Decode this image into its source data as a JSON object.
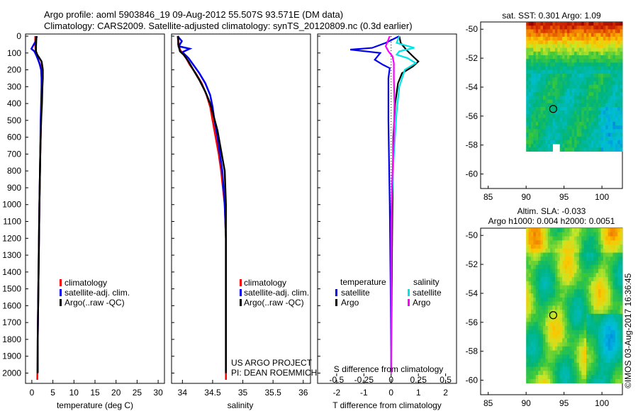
{
  "header": {
    "title_line1": "Argo profile: aoml 5903846_19 09-Aug-2012 55.507S 93.571E (DM data)",
    "title_line2": "Climatology: CARS2009. Satellite-adjusted climatology: synTS_20120809.nc (0.3d earlier)"
  },
  "colors": {
    "climatology": "#ff0000",
    "satellite": "#0000ee",
    "argo": "#000000",
    "sat_salinity": "#00e5e5",
    "argo_salinity": "#ff00ff"
  },
  "pressure_axis": {
    "ticks": [
      "0",
      "100",
      "200",
      "300",
      "400",
      "500",
      "600",
      "700",
      "800",
      "900",
      "1000",
      "1100",
      "1200",
      "1300",
      "1400",
      "1500",
      "1600",
      "1700",
      "1800",
      "1900",
      "2000"
    ],
    "ylim": [
      0,
      2050
    ]
  },
  "chart_data": [
    {
      "type": "line",
      "id": "temperature",
      "xlabel": "temperature (deg C)",
      "xlim": [
        -1.5,
        31.5
      ],
      "xticks": [
        "0",
        "5",
        "10",
        "15",
        "20",
        "25",
        "30"
      ],
      "xtick_values": [
        0,
        5,
        10,
        15,
        20,
        25,
        30
      ],
      "legend": [
        "climatology",
        "satellite-adj. clim.",
        "Argo(..raw -QC)"
      ],
      "series": [
        {
          "name": "climatology",
          "color": "#ff0000",
          "points": [
            [
              0.8,
              0
            ],
            [
              0.8,
              50
            ],
            [
              0.9,
              90
            ],
            [
              1.1,
              110
            ],
            [
              1.5,
              140
            ],
            [
              2.0,
              170
            ],
            [
              2.3,
              200
            ],
            [
              2.4,
              250
            ],
            [
              2.4,
              300
            ],
            [
              2.3,
              400
            ],
            [
              2.2,
              500
            ],
            [
              2.0,
              700
            ],
            [
              1.8,
              1000
            ],
            [
              1.6,
              1400
            ],
            [
              1.4,
              1800
            ],
            [
              1.3,
              2040
            ]
          ]
        },
        {
          "name": "satellite-adj. clim.",
          "color": "#0000ee",
          "points": [
            [
              1.2,
              0
            ],
            [
              0.9,
              30
            ],
            [
              -0.1,
              75
            ],
            [
              0.6,
              90
            ],
            [
              1.0,
              110
            ],
            [
              1.5,
              140
            ],
            [
              1.9,
              170
            ],
            [
              2.2,
              200
            ],
            [
              2.3,
              250
            ],
            [
              2.3,
              300
            ],
            [
              2.2,
              400
            ],
            [
              2.1,
              500
            ],
            [
              2.0,
              700
            ],
            [
              1.8,
              1000
            ],
            [
              1.6,
              1400
            ],
            [
              1.4,
              1800
            ],
            [
              1.4,
              2000
            ]
          ]
        },
        {
          "name": "Argo(..raw -QC)",
          "color": "#000000",
          "points": [
            [
              1.1,
              0
            ],
            [
              1.0,
              60
            ],
            [
              1.0,
              90
            ],
            [
              1.3,
              110
            ],
            [
              1.8,
              130
            ],
            [
              2.3,
              150
            ],
            [
              2.5,
              180
            ],
            [
              2.6,
              200
            ],
            [
              2.6,
              250
            ],
            [
              2.5,
              300
            ],
            [
              2.4,
              400
            ],
            [
              2.2,
              500
            ],
            [
              2.0,
              700
            ],
            [
              1.8,
              1000
            ],
            [
              1.6,
              1400
            ],
            [
              1.4,
              1800
            ],
            [
              1.4,
              2000
            ]
          ]
        }
      ]
    },
    {
      "type": "line",
      "id": "salinity",
      "xlabel": "salinity",
      "xlim": [
        33.82,
        36.12
      ],
      "xticks": [
        "34",
        "34.5",
        "35",
        "35.5",
        "36"
      ],
      "xtick_values": [
        34,
        34.5,
        35,
        35.5,
        36
      ],
      "legend": [
        "climatology",
        "satellite-adj. clim.",
        "Argo(..raw -QC)"
      ],
      "series": [
        {
          "name": "climatology",
          "color": "#ff0000",
          "points": [
            [
              33.92,
              0
            ],
            [
              33.94,
              50
            ],
            [
              33.96,
              80
            ],
            [
              34.0,
              100
            ],
            [
              34.06,
              130
            ],
            [
              34.12,
              170
            ],
            [
              34.22,
              220
            ],
            [
              34.32,
              280
            ],
            [
              34.4,
              350
            ],
            [
              34.46,
              420
            ],
            [
              34.5,
              500
            ],
            [
              34.55,
              600
            ],
            [
              34.6,
              700
            ],
            [
              34.64,
              800
            ],
            [
              34.67,
              900
            ],
            [
              34.7,
              1000
            ],
            [
              34.72,
              1200
            ],
            [
              34.72,
              1400
            ],
            [
              34.72,
              1600
            ],
            [
              34.72,
              1800
            ],
            [
              34.72,
              2040
            ]
          ]
        },
        {
          "name": "satellite-adj. clim.",
          "color": "#0000ee",
          "points": [
            [
              33.92,
              0
            ],
            [
              33.99,
              30
            ],
            [
              33.94,
              60
            ],
            [
              34.12,
              75
            ],
            [
              34.0,
              95
            ],
            [
              34.1,
              130
            ],
            [
              34.18,
              170
            ],
            [
              34.28,
              220
            ],
            [
              34.38,
              280
            ],
            [
              34.46,
              350
            ],
            [
              34.5,
              420
            ],
            [
              34.53,
              500
            ],
            [
              34.58,
              600
            ],
            [
              34.62,
              700
            ],
            [
              34.66,
              800
            ],
            [
              34.68,
              900
            ],
            [
              34.7,
              1000
            ],
            [
              34.72,
              1200
            ],
            [
              34.72,
              1400
            ],
            [
              34.72,
              1600
            ],
            [
              34.72,
              1800
            ],
            [
              34.72,
              2000
            ]
          ]
        },
        {
          "name": "Argo(..raw -QC)",
          "color": "#000000",
          "points": [
            [
              33.93,
              0
            ],
            [
              33.93,
              50
            ],
            [
              33.96,
              90
            ],
            [
              34.02,
              110
            ],
            [
              34.1,
              150
            ],
            [
              34.18,
              200
            ],
            [
              34.28,
              260
            ],
            [
              34.38,
              330
            ],
            [
              34.46,
              400
            ],
            [
              34.52,
              480
            ],
            [
              34.58,
              560
            ],
            [
              34.62,
              640
            ],
            [
              34.66,
              720
            ],
            [
              34.7,
              800
            ],
            [
              34.72,
              1000
            ],
            [
              34.72,
              1400
            ],
            [
              34.72,
              2000
            ]
          ]
        }
      ]
    },
    {
      "type": "line",
      "id": "difference",
      "xlabel": "T difference from climatology",
      "xlabel_top": "S difference from climatology",
      "xlim": [
        -2.7,
        2.4
      ],
      "xticks": [
        "-2",
        "-1",
        "0",
        "1",
        "2"
      ],
      "xtick_values": [
        -2,
        -1,
        0,
        1,
        2
      ],
      "sticks": [
        "-0.5",
        "-0.25",
        "0",
        "0.25",
        "0.5"
      ],
      "stick_values": [
        -0.5,
        -0.25,
        0,
        0.25,
        0.5
      ],
      "legend_temperature_heading": "temperature",
      "legend_salinity_heading": "salinity",
      "legend_temperature": [
        "satellite",
        "Argo"
      ],
      "legend_salinity": [
        "satellite",
        "Argo"
      ],
      "project_line1": "US ARGO PROJECT",
      "project_line2": "PI: DEAN ROEMMICH",
      "series": [
        {
          "name": "T satellite",
          "color": "#0000ee",
          "points": [
            [
              0.3,
              0
            ],
            [
              -0.2,
              40
            ],
            [
              -0.7,
              70
            ],
            [
              -1.5,
              80
            ],
            [
              -0.4,
              100
            ],
            [
              -0.6,
              140
            ],
            [
              -0.3,
              170
            ],
            [
              -0.05,
              190
            ],
            [
              -0.1,
              250
            ],
            [
              -0.1,
              500
            ],
            [
              -0.05,
              1000
            ],
            [
              -0.02,
              1500
            ],
            [
              0,
              2000
            ]
          ]
        },
        {
          "name": "T Argo",
          "color": "#000000",
          "points": [
            [
              0.3,
              0
            ],
            [
              0.35,
              40
            ],
            [
              0.55,
              80
            ],
            [
              0.8,
              120
            ],
            [
              1.0,
              150
            ],
            [
              0.8,
              180
            ],
            [
              0.4,
              220
            ],
            [
              0.25,
              280
            ],
            [
              0.15,
              400
            ],
            [
              0.08,
              600
            ],
            [
              0.05,
              1000
            ],
            [
              0.02,
              1500
            ],
            [
              0,
              2000
            ]
          ]
        },
        {
          "name": "S satellite",
          "color": "#00e5e5",
          "points": [
            [
              0.3,
              0
            ],
            [
              0.2,
              40
            ],
            [
              0.85,
              70
            ],
            [
              0.3,
              90
            ],
            [
              0.2,
              110
            ],
            [
              0.6,
              130
            ],
            [
              0.9,
              160
            ],
            [
              0.5,
              200
            ],
            [
              0.3,
              300
            ],
            [
              0.2,
              450
            ],
            [
              0.1,
              700
            ],
            [
              0.02,
              1000
            ],
            [
              0,
              1500
            ],
            [
              0,
              2000
            ]
          ]
        },
        {
          "name": "S Argo",
          "color": "#ff00ff",
          "points": [
            [
              -0.05,
              0
            ],
            [
              -0.2,
              60
            ],
            [
              -0.1,
              90
            ],
            [
              0.05,
              120
            ],
            [
              0.1,
              160
            ],
            [
              0.1,
              250
            ],
            [
              0.12,
              400
            ],
            [
              0.1,
              600
            ],
            [
              0.08,
              700
            ],
            [
              0.03,
              900
            ],
            [
              0,
              1100
            ],
            [
              0,
              2000
            ]
          ]
        }
      ]
    },
    {
      "type": "heatmap",
      "id": "sst_map",
      "title": "sat. SST: 0.301 Argo: 1.09",
      "xlim": [
        84,
        102.7
      ],
      "ylim": [
        -61,
        -49.5
      ],
      "xticks": [
        "85",
        "90",
        "95",
        "100"
      ],
      "xtick_values": [
        85,
        90,
        95,
        100
      ],
      "yticks": [
        "-50",
        "-52",
        "-54",
        "-56",
        "-58",
        "-60"
      ],
      "ytick_values": [
        -50,
        -52,
        -54,
        -56,
        -58,
        -60
      ],
      "marker": [
        93.571,
        -55.507
      ]
    },
    {
      "type": "heatmap",
      "id": "sla_map",
      "title_line1": "Altim. SLA: -0.033",
      "title_line2": "Argo h1000: 0.004 h2000: 0.0051",
      "xlim": [
        84,
        102.7
      ],
      "ylim": [
        -61,
        -49.5
      ],
      "xticks": [
        "85",
        "90",
        "95",
        "100"
      ],
      "xtick_values": [
        85,
        90,
        95,
        100
      ],
      "yticks": [
        "-50",
        "-52",
        "-54",
        "-56",
        "-58",
        "-60"
      ],
      "ytick_values": [
        -50,
        -52,
        -54,
        -56,
        -58,
        -60
      ],
      "marker": [
        93.571,
        -55.507
      ]
    }
  ],
  "footer": {
    "stamp": "©IMOS 03-Aug-2017 16:36:45"
  }
}
